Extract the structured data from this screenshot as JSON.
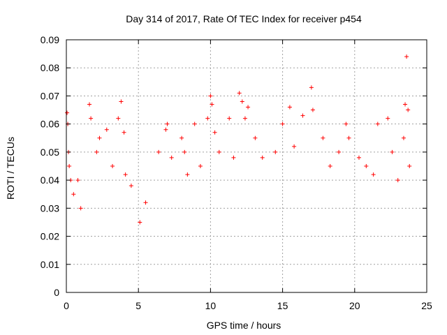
{
  "chart_data": {
    "type": "scatter",
    "title": "Day 314 of 2017, Rate Of TEC Index for receiver p454",
    "xlabel": "GPS time / hours",
    "ylabel": "ROTI / TECUs",
    "xlim": [
      0,
      25
    ],
    "ylim": [
      0,
      0.09
    ],
    "x_ticks": [
      "0",
      "5",
      "10",
      "15",
      "20",
      "25"
    ],
    "y_ticks": [
      "0",
      "0.01",
      "0.02",
      "0.03",
      "0.04",
      "0.05",
      "0.06",
      "0.07",
      "0.08",
      "0.09"
    ],
    "grid": true,
    "marker": "+",
    "color": "#ff0000",
    "series": [
      {
        "name": "ROTI",
        "x": [
          0.05,
          0.1,
          0.15,
          0.2,
          0.3,
          0.5,
          0.8,
          1.0,
          1.6,
          1.7,
          2.1,
          2.3,
          2.8,
          3.2,
          3.6,
          3.8,
          4.0,
          4.1,
          4.5,
          5.1,
          5.5,
          6.4,
          6.9,
          7.0,
          7.3,
          8.0,
          8.2,
          8.4,
          8.9,
          9.3,
          9.8,
          10.0,
          10.1,
          10.3,
          10.6,
          11.3,
          11.6,
          12.0,
          12.2,
          12.4,
          12.6,
          13.1,
          13.6,
          14.5,
          15.0,
          15.5,
          15.8,
          16.4,
          17.0,
          17.1,
          17.8,
          18.3,
          18.9,
          19.4,
          19.6,
          20.3,
          20.8,
          21.3,
          21.6,
          22.3,
          22.6,
          23.0,
          23.4,
          23.5,
          23.6,
          23.7,
          23.8
        ],
        "y": [
          0.064,
          0.06,
          0.05,
          0.045,
          0.04,
          0.035,
          0.04,
          0.03,
          0.067,
          0.062,
          0.05,
          0.055,
          0.058,
          0.045,
          0.062,
          0.068,
          0.057,
          0.042,
          0.038,
          0.025,
          0.032,
          0.05,
          0.058,
          0.06,
          0.048,
          0.055,
          0.05,
          0.042,
          0.06,
          0.045,
          0.062,
          0.07,
          0.067,
          0.057,
          0.05,
          0.062,
          0.048,
          0.071,
          0.068,
          0.062,
          0.066,
          0.055,
          0.048,
          0.05,
          0.06,
          0.066,
          0.052,
          0.063,
          0.073,
          0.065,
          0.055,
          0.045,
          0.05,
          0.06,
          0.055,
          0.048,
          0.045,
          0.042,
          0.06,
          0.062,
          0.05,
          0.04,
          0.055,
          0.067,
          0.084,
          0.065,
          0.045
        ]
      }
    ]
  }
}
